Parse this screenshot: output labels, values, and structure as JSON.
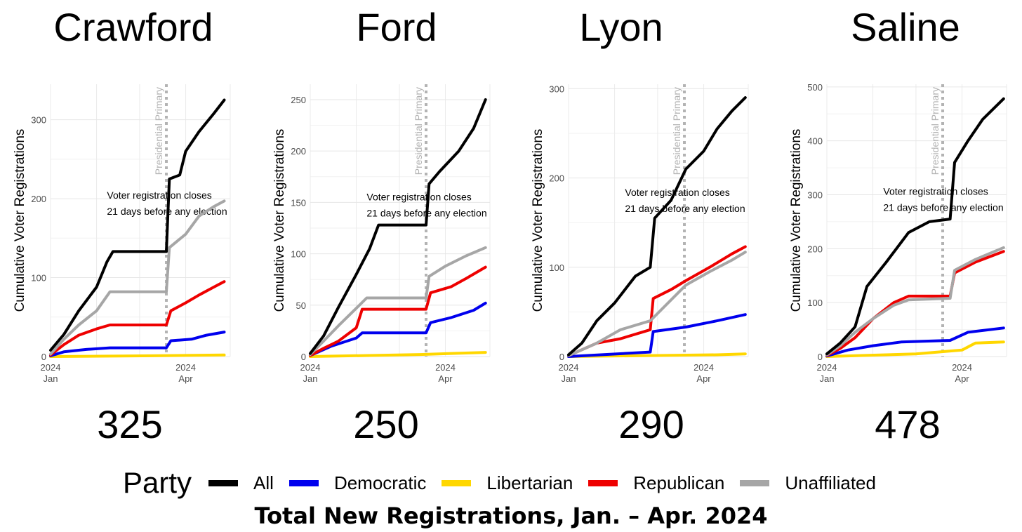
{
  "caption": "Total New Registrations, Jan. – Apr. 2024",
  "legend": {
    "title": "Party",
    "items": [
      {
        "label": "All",
        "color": "#000000"
      },
      {
        "label": "Democratic",
        "color": "#0000ee"
      },
      {
        "label": "Libertarian",
        "color": "#ffd700"
      },
      {
        "label": "Republican",
        "color": "#ee0000"
      },
      {
        "label": "Unaffiliated",
        "color": "#a6a6a6"
      }
    ]
  },
  "chart_data": [
    {
      "type": "line",
      "title": "Crawford",
      "total": "325",
      "ylabel": "Cumulative Voter Registrations",
      "xlim": [
        "2024-01-01",
        "2024-05-01"
      ],
      "ylim": [
        0,
        345
      ],
      "yticks": [
        0,
        100,
        200,
        300
      ],
      "xticks": [
        {
          "date": "2024-01-01",
          "label": "2024\nJan"
        },
        {
          "date": "2024-04-01",
          "label": "2024\nApr"
        }
      ],
      "vline": {
        "date": "2024-03-19",
        "label": "Presidential Primary"
      },
      "annotation": [
        "Voter registration closes",
        "21 days before any election"
      ],
      "annotation_at": {
        "date": "2024-02-08",
        "y": 200
      },
      "series": [
        {
          "name": "All",
          "color": "#000000",
          "points": [
            [
              "2024-01-01",
              8
            ],
            [
              "2024-01-10",
              28
            ],
            [
              "2024-01-20",
              58
            ],
            [
              "2024-02-01",
              88
            ],
            [
              "2024-02-08",
              120
            ],
            [
              "2024-02-12",
              133
            ],
            [
              "2024-03-19",
              133
            ],
            [
              "2024-03-21",
              225
            ],
            [
              "2024-03-28",
              230
            ],
            [
              "2024-04-01",
              260
            ],
            [
              "2024-04-10",
              285
            ],
            [
              "2024-04-20",
              308
            ],
            [
              "2024-04-27",
              325
            ]
          ]
        },
        {
          "name": "Unaffiliated",
          "color": "#a6a6a6",
          "points": [
            [
              "2024-01-01",
              3
            ],
            [
              "2024-01-10",
              22
            ],
            [
              "2024-01-20",
              40
            ],
            [
              "2024-02-01",
              58
            ],
            [
              "2024-02-10",
              82
            ],
            [
              "2024-03-19",
              82
            ],
            [
              "2024-03-21",
              138
            ],
            [
              "2024-04-01",
              155
            ],
            [
              "2024-04-10",
              178
            ],
            [
              "2024-04-20",
              190
            ],
            [
              "2024-04-27",
              197
            ]
          ]
        },
        {
          "name": "Republican",
          "color": "#ee0000",
          "points": [
            [
              "2024-01-01",
              2
            ],
            [
              "2024-01-10",
              15
            ],
            [
              "2024-01-20",
              27
            ],
            [
              "2024-02-01",
              35
            ],
            [
              "2024-02-10",
              40
            ],
            [
              "2024-03-19",
              40
            ],
            [
              "2024-03-22",
              58
            ],
            [
              "2024-04-01",
              68
            ],
            [
              "2024-04-10",
              78
            ],
            [
              "2024-04-20",
              88
            ],
            [
              "2024-04-27",
              95
            ]
          ]
        },
        {
          "name": "Democratic",
          "color": "#0000ee",
          "points": [
            [
              "2024-01-01",
              1
            ],
            [
              "2024-01-10",
              6
            ],
            [
              "2024-01-25",
              9
            ],
            [
              "2024-02-10",
              11
            ],
            [
              "2024-03-19",
              11
            ],
            [
              "2024-03-22",
              20
            ],
            [
              "2024-04-05",
              22
            ],
            [
              "2024-04-15",
              27
            ],
            [
              "2024-04-27",
              31
            ]
          ]
        },
        {
          "name": "Libertarian",
          "color": "#ffd700",
          "points": [
            [
              "2024-01-01",
              0
            ],
            [
              "2024-03-10",
              1
            ],
            [
              "2024-04-27",
              2
            ]
          ]
        }
      ]
    },
    {
      "type": "line",
      "title": "Ford",
      "total": "250",
      "ylabel": "Cumulative Voter Registrations",
      "xlim": [
        "2024-01-01",
        "2024-05-01"
      ],
      "ylim": [
        0,
        265
      ],
      "yticks": [
        0,
        50,
        100,
        150,
        200,
        250
      ],
      "xticks": [
        {
          "date": "2024-01-01",
          "label": "2024\nJan"
        },
        {
          "date": "2024-04-01",
          "label": "2024\nApr"
        }
      ],
      "vline": {
        "date": "2024-03-19",
        "label": "Presidential Primary"
      },
      "annotation": [
        "Voter registration closes",
        "21 days before any election"
      ],
      "annotation_at": {
        "date": "2024-02-08",
        "y": 152
      },
      "series": [
        {
          "name": "All",
          "color": "#000000",
          "points": [
            [
              "2024-01-01",
              3
            ],
            [
              "2024-01-10",
              20
            ],
            [
              "2024-01-20",
              48
            ],
            [
              "2024-02-01",
              80
            ],
            [
              "2024-02-10",
              105
            ],
            [
              "2024-02-16",
              128
            ],
            [
              "2024-03-19",
              128
            ],
            [
              "2024-03-21",
              168
            ],
            [
              "2024-03-28",
              180
            ],
            [
              "2024-04-10",
              200
            ],
            [
              "2024-04-20",
              222
            ],
            [
              "2024-04-28",
              250
            ]
          ]
        },
        {
          "name": "Unaffiliated",
          "color": "#a6a6a6",
          "points": [
            [
              "2024-01-01",
              2
            ],
            [
              "2024-01-10",
              15
            ],
            [
              "2024-01-20",
              30
            ],
            [
              "2024-02-01",
              47
            ],
            [
              "2024-02-08",
              57
            ],
            [
              "2024-03-19",
              57
            ],
            [
              "2024-03-21",
              78
            ],
            [
              "2024-04-01",
              88
            ],
            [
              "2024-04-15",
              98
            ],
            [
              "2024-04-28",
              106
            ]
          ]
        },
        {
          "name": "Republican",
          "color": "#ee0000",
          "points": [
            [
              "2024-01-01",
              1
            ],
            [
              "2024-01-10",
              8
            ],
            [
              "2024-01-20",
              15
            ],
            [
              "2024-02-01",
              28
            ],
            [
              "2024-02-05",
              46
            ],
            [
              "2024-03-19",
              46
            ],
            [
              "2024-03-22",
              62
            ],
            [
              "2024-04-05",
              68
            ],
            [
              "2024-04-15",
              76
            ],
            [
              "2024-04-28",
              87
            ]
          ]
        },
        {
          "name": "Democratic",
          "color": "#0000ee",
          "points": [
            [
              "2024-01-01",
              1
            ],
            [
              "2024-01-15",
              10
            ],
            [
              "2024-02-01",
              18
            ],
            [
              "2024-02-05",
              23
            ],
            [
              "2024-03-19",
              23
            ],
            [
              "2024-03-22",
              33
            ],
            [
              "2024-04-05",
              38
            ],
            [
              "2024-04-20",
              45
            ],
            [
              "2024-04-28",
              52
            ]
          ]
        },
        {
          "name": "Libertarian",
          "color": "#ffd700",
          "points": [
            [
              "2024-01-01",
              0
            ],
            [
              "2024-02-10",
              1
            ],
            [
              "2024-03-15",
              2
            ],
            [
              "2024-04-28",
              4
            ]
          ]
        }
      ]
    },
    {
      "type": "line",
      "title": "Lyon",
      "total": "290",
      "ylabel": "Cumulative Voter Registrations",
      "xlim": [
        "2024-01-01",
        "2024-05-01"
      ],
      "ylim": [
        0,
        305
      ],
      "yticks": [
        0,
        100,
        200,
        300
      ],
      "xticks": [
        {
          "date": "2024-01-01",
          "label": "2024\nJan"
        },
        {
          "date": "2024-04-01",
          "label": "2024\nApr"
        }
      ],
      "vline": {
        "date": "2024-03-19",
        "label": "Presidential Primary"
      },
      "annotation": [
        "Voter registration closes",
        "21 days before any election"
      ],
      "annotation_at": {
        "date": "2024-02-08",
        "y": 180
      },
      "series": [
        {
          "name": "All",
          "color": "#000000",
          "points": [
            [
              "2024-01-01",
              2
            ],
            [
              "2024-01-10",
              15
            ],
            [
              "2024-01-20",
              40
            ],
            [
              "2024-02-01",
              60
            ],
            [
              "2024-02-15",
              90
            ],
            [
              "2024-02-25",
              100
            ],
            [
              "2024-02-28",
              155
            ],
            [
              "2024-03-10",
              175
            ],
            [
              "2024-03-20",
              210
            ],
            [
              "2024-04-01",
              230
            ],
            [
              "2024-04-10",
              255
            ],
            [
              "2024-04-20",
              275
            ],
            [
              "2024-04-29",
              290
            ]
          ]
        },
        {
          "name": "Unaffiliated",
          "color": "#a6a6a6",
          "points": [
            [
              "2024-01-01",
              1
            ],
            [
              "2024-01-20",
              15
            ],
            [
              "2024-02-05",
              30
            ],
            [
              "2024-02-25",
              40
            ],
            [
              "2024-03-05",
              55
            ],
            [
              "2024-03-20",
              80
            ],
            [
              "2024-04-05",
              95
            ],
            [
              "2024-04-20",
              108
            ],
            [
              "2024-04-29",
              117
            ]
          ]
        },
        {
          "name": "Republican",
          "color": "#ee0000",
          "points": [
            [
              "2024-01-01",
              1
            ],
            [
              "2024-01-20",
              15
            ],
            [
              "2024-02-05",
              20
            ],
            [
              "2024-02-25",
              30
            ],
            [
              "2024-02-27",
              65
            ],
            [
              "2024-03-10",
              75
            ],
            [
              "2024-03-20",
              85
            ],
            [
              "2024-04-05",
              100
            ],
            [
              "2024-04-20",
              115
            ],
            [
              "2024-04-29",
              123
            ]
          ]
        },
        {
          "name": "Democratic",
          "color": "#0000ee",
          "points": [
            [
              "2024-01-01",
              0
            ],
            [
              "2024-02-25",
              5
            ],
            [
              "2024-02-27",
              28
            ],
            [
              "2024-03-20",
              33
            ],
            [
              "2024-04-10",
              40
            ],
            [
              "2024-04-29",
              47
            ]
          ]
        },
        {
          "name": "Libertarian",
          "color": "#ffd700",
          "points": [
            [
              "2024-01-01",
              0
            ],
            [
              "2024-04-10",
              2
            ],
            [
              "2024-04-29",
              3
            ]
          ]
        }
      ]
    },
    {
      "type": "line",
      "title": "Saline",
      "total": "478",
      "ylabel": "Cumulative Voter Registrations",
      "xlim": [
        "2024-01-01",
        "2024-05-01"
      ],
      "ylim": [
        0,
        505
      ],
      "yticks": [
        0,
        100,
        200,
        300,
        400,
        500
      ],
      "xticks": [
        {
          "date": "2024-01-01",
          "label": "2024\nJan"
        },
        {
          "date": "2024-04-01",
          "label": "2024\nApr"
        }
      ],
      "vline": {
        "date": "2024-03-19",
        "label": "Presidential Primary"
      },
      "annotation": [
        "Voter registration closes",
        "21 days before any election"
      ],
      "annotation_at": {
        "date": "2024-02-08",
        "y": 300
      },
      "series": [
        {
          "name": "All",
          "color": "#000000",
          "points": [
            [
              "2024-01-01",
              5
            ],
            [
              "2024-01-10",
              25
            ],
            [
              "2024-01-20",
              55
            ],
            [
              "2024-01-28",
              130
            ],
            [
              "2024-02-10",
              175
            ],
            [
              "2024-02-25",
              230
            ],
            [
              "2024-03-10",
              250
            ],
            [
              "2024-03-24",
              255
            ],
            [
              "2024-03-27",
              360
            ],
            [
              "2024-04-05",
              400
            ],
            [
              "2024-04-15",
              440
            ],
            [
              "2024-04-29",
              478
            ]
          ]
        },
        {
          "name": "Unaffiliated",
          "color": "#a6a6a6",
          "points": [
            [
              "2024-01-01",
              3
            ],
            [
              "2024-01-10",
              20
            ],
            [
              "2024-01-20",
              45
            ],
            [
              "2024-02-01",
              70
            ],
            [
              "2024-02-15",
              95
            ],
            [
              "2024-02-25",
              105
            ],
            [
              "2024-03-24",
              108
            ],
            [
              "2024-03-27",
              160
            ],
            [
              "2024-04-10",
              180
            ],
            [
              "2024-04-29",
              202
            ]
          ]
        },
        {
          "name": "Republican",
          "color": "#ee0000",
          "points": [
            [
              "2024-01-01",
              2
            ],
            [
              "2024-01-10",
              15
            ],
            [
              "2024-01-20",
              35
            ],
            [
              "2024-02-01",
              70
            ],
            [
              "2024-02-15",
              100
            ],
            [
              "2024-02-25",
              112
            ],
            [
              "2024-03-24",
              112
            ],
            [
              "2024-03-27",
              155
            ],
            [
              "2024-04-10",
              175
            ],
            [
              "2024-04-29",
              195
            ]
          ]
        },
        {
          "name": "Democratic",
          "color": "#0000ee",
          "points": [
            [
              "2024-01-01",
              1
            ],
            [
              "2024-01-15",
              12
            ],
            [
              "2024-02-01",
              20
            ],
            [
              "2024-02-20",
              27
            ],
            [
              "2024-03-24",
              30
            ],
            [
              "2024-04-05",
              45
            ],
            [
              "2024-04-29",
              53
            ]
          ]
        },
        {
          "name": "Libertarian",
          "color": "#ffd700",
          "points": [
            [
              "2024-01-01",
              0
            ],
            [
              "2024-03-01",
              5
            ],
            [
              "2024-04-01",
              12
            ],
            [
              "2024-04-10",
              25
            ],
            [
              "2024-04-29",
              27
            ]
          ]
        }
      ]
    }
  ]
}
